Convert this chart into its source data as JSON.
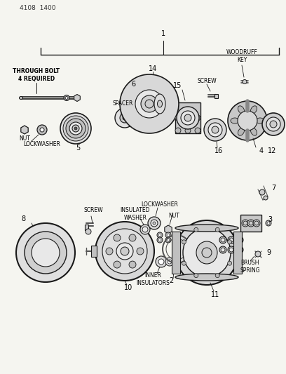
{
  "bg_color": "#f5f5f0",
  "line_color": "#1a1a1a",
  "gray_dark": "#555555",
  "gray_mid": "#888888",
  "gray_light": "#bbbbbb",
  "gray_fill": "#cccccc",
  "white": "#ffffff",
  "part_number": "4108  1400",
  "labels": {
    "through_bolt": "THROUGH BOLT\n4 REQUIRED",
    "spacer": "SPACER",
    "nut": "NUT",
    "lockwasher": "LOCKWASHER",
    "woodruff_key": "WOODRUFF\nKEY",
    "screw": "SCREW",
    "lockwasher2": "LOCKWASHER",
    "screw2": "SCREW",
    "insulated_washer": "INSULATED\nWASHER",
    "nut2": "NUT",
    "inner_insulators": "INNER\nINSULATORS",
    "brush_spring": "BRUSH\nSPRING"
  },
  "nums": {
    "n1": "1",
    "n2": "2",
    "n3": "3",
    "n4": "4",
    "n5": "5",
    "n6": "6",
    "n7": "7",
    "n8": "8",
    "n9": "9",
    "n10": "10",
    "n11": "11",
    "n12": "12",
    "n14": "14",
    "n15": "15",
    "n16": "16"
  }
}
